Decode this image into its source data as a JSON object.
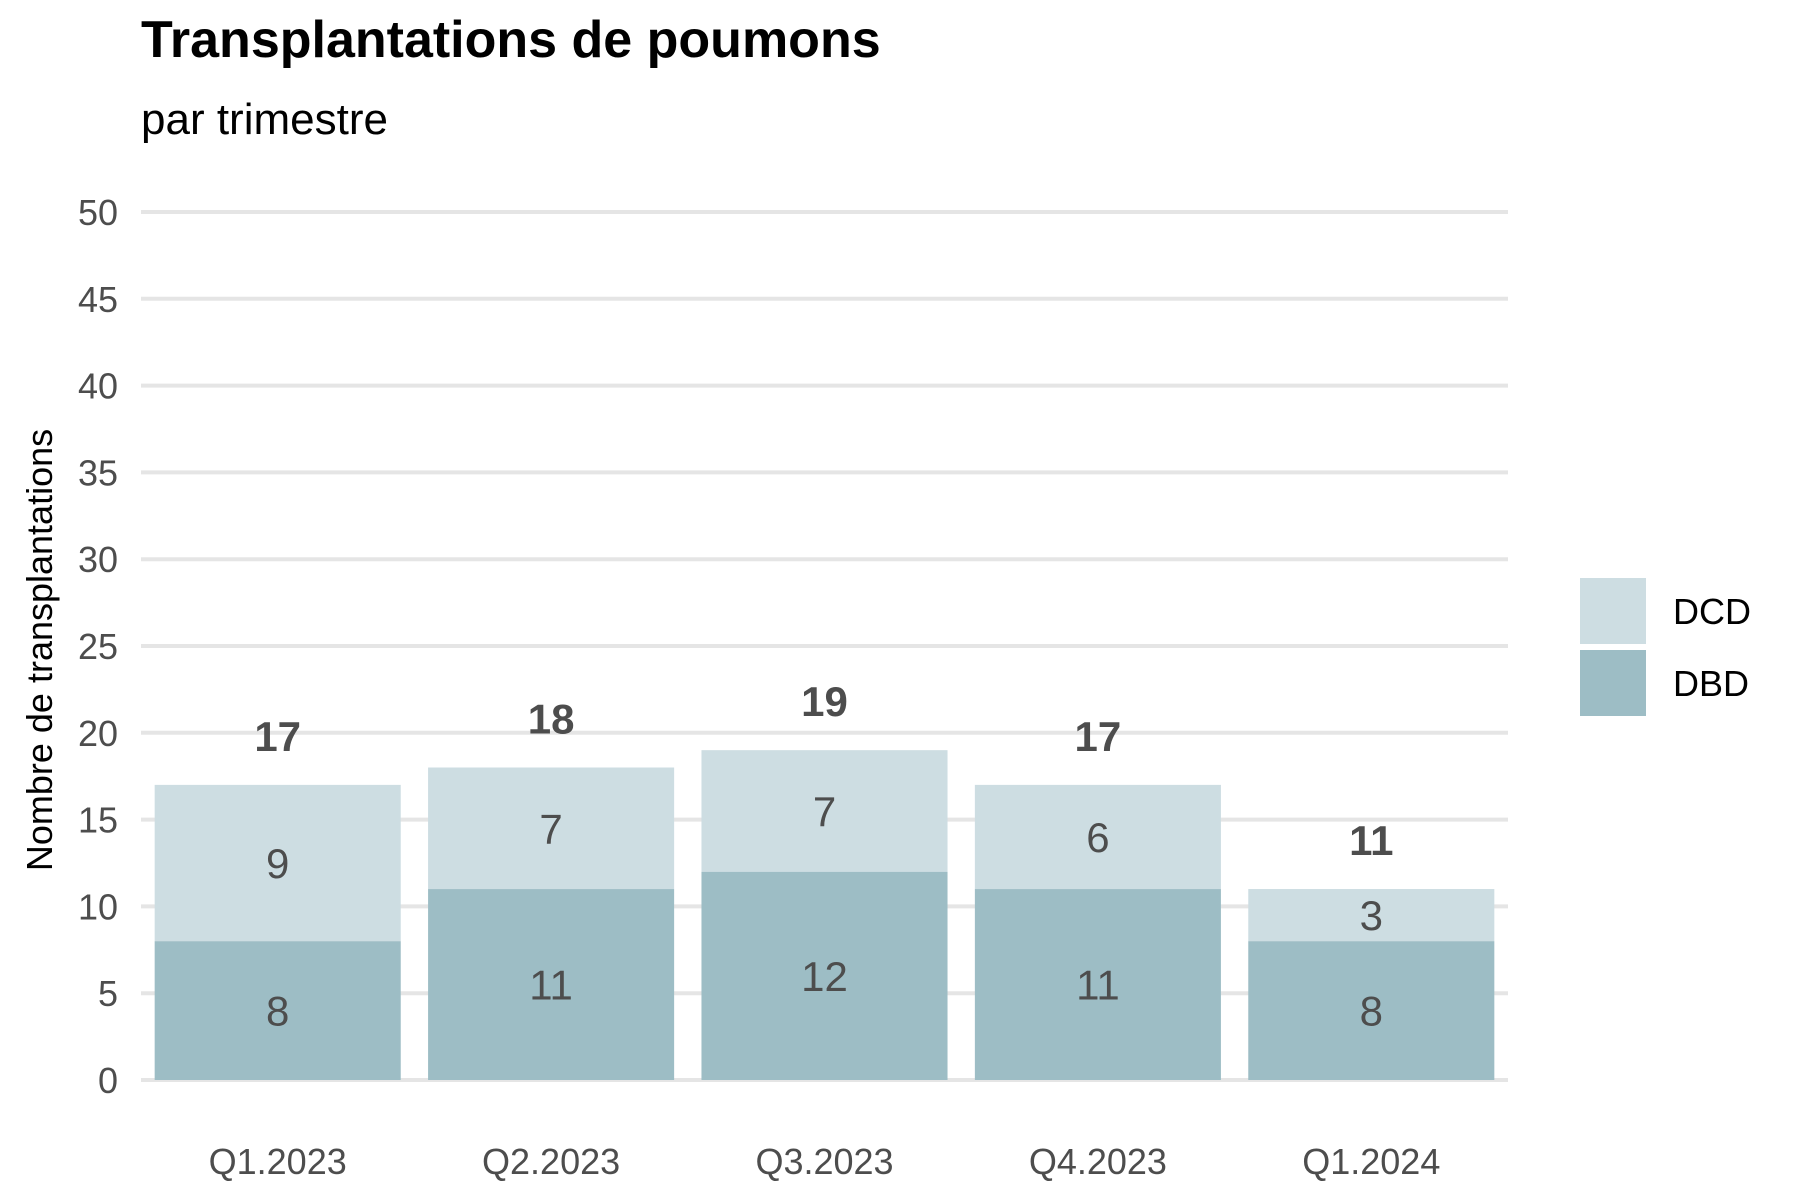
{
  "chart_data": {
    "type": "bar",
    "stacked": true,
    "title": "Transplantations de poumons",
    "subtitle": "par trimestre",
    "xlabel": "",
    "ylabel": "Nombre de transplantations",
    "ylim": [
      0,
      50
    ],
    "yticks": [
      0,
      5,
      10,
      15,
      20,
      25,
      30,
      35,
      40,
      45,
      50
    ],
    "categories": [
      "Q1.2023",
      "Q2.2023",
      "Q3.2023",
      "Q4.2023",
      "Q1.2024"
    ],
    "series": [
      {
        "name": "DBD",
        "values": [
          8,
          11,
          12,
          11,
          8
        ],
        "color": "#9dbdc5"
      },
      {
        "name": "DCD",
        "values": [
          9,
          7,
          7,
          6,
          3
        ],
        "color": "#cddde2"
      }
    ],
    "totals": [
      17,
      18,
      19,
      17,
      11
    ],
    "legend_position": "right",
    "legend_order": [
      "DCD",
      "DBD"
    ],
    "grid": true,
    "grid_color": "#e5e5e5"
  }
}
